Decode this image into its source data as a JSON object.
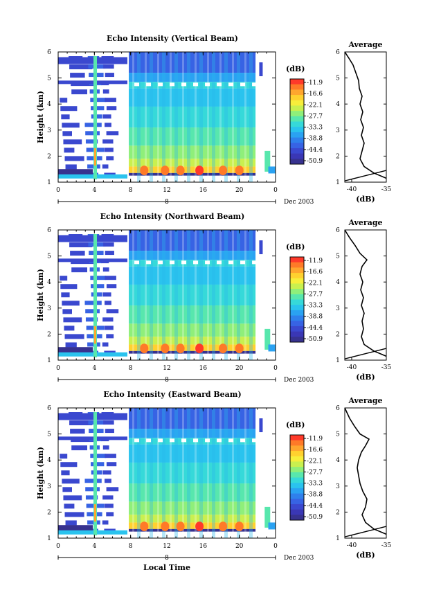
{
  "figure": {
    "date_label": "Dec 2003",
    "day_label": "8",
    "xlabel": "Local Time",
    "ylabel": "Height (km)"
  },
  "colorbar": {
    "unit": "(dB)",
    "ticks": [
      "-11.9",
      "-16.6",
      "-22.1",
      "-27.7",
      "-33.3",
      "-38.8",
      "-44.4",
      "-50.9"
    ],
    "colors": [
      "#ff3a2a",
      "#ff7a28",
      "#ffa62e",
      "#ffd12f",
      "#f7ee3b",
      "#c9f04f",
      "#8fef7a",
      "#58e7ad",
      "#36d9d9",
      "#2ac3ee",
      "#2aa2f2",
      "#2f80ec",
      "#3763e4",
      "#3a48cf",
      "#3a37b5",
      "#37328f"
    ]
  },
  "chart_data": [
    {
      "type": "heatmap",
      "title": "Echo Intensity (Vertical Beam)",
      "xlabel": "",
      "ylabel": "Height (km)",
      "xlim": [
        0,
        24
      ],
      "ylim": [
        1,
        6
      ],
      "xticks": [
        "0",
        "4",
        "8",
        "12",
        "16",
        "20",
        "0"
      ],
      "yticks": [
        "1",
        "2",
        "3",
        "4",
        "5",
        "6"
      ],
      "profile": {
        "type": "line",
        "title": "Average",
        "xlabel": "(dB)",
        "xlim": [
          -41,
          -35
        ],
        "xticks": [
          "-40",
          "-35"
        ],
        "points": [
          [
            -35.0,
            1.15
          ],
          [
            -36.8,
            1.35
          ],
          [
            -38.2,
            1.6
          ],
          [
            -38.8,
            1.9
          ],
          [
            -38.5,
            2.2
          ],
          [
            -38.2,
            2.5
          ],
          [
            -38.6,
            2.8
          ],
          [
            -38.3,
            3.1
          ],
          [
            -38.7,
            3.4
          ],
          [
            -38.4,
            3.7
          ],
          [
            -38.8,
            4.0
          ],
          [
            -38.5,
            4.3
          ],
          [
            -38.9,
            4.6
          ],
          [
            -39.0,
            4.9
          ],
          [
            -39.4,
            5.2
          ],
          [
            -39.8,
            5.5
          ],
          [
            -40.5,
            5.8
          ],
          [
            -41.0,
            6.0
          ]
        ],
        "lower_line": [
          [
            -41.0,
            1.05
          ],
          [
            -35.0,
            1.45
          ]
        ]
      }
    },
    {
      "type": "heatmap",
      "title": "Echo Intensity (Northward Beam)",
      "xlabel": "",
      "ylabel": "Height (km)",
      "xlim": [
        0,
        24
      ],
      "ylim": [
        1,
        6
      ],
      "xticks": [
        "0",
        "4",
        "8",
        "12",
        "16",
        "20",
        "0"
      ],
      "yticks": [
        "1",
        "2",
        "3",
        "4",
        "5",
        "6"
      ],
      "profile": {
        "type": "line",
        "title": "Average",
        "xlabel": "(dB)",
        "xlim": [
          -41,
          -35
        ],
        "xticks": [
          "-40",
          "-35"
        ],
        "points": [
          [
            -35.0,
            1.15
          ],
          [
            -36.8,
            1.35
          ],
          [
            -38.2,
            1.6
          ],
          [
            -38.6,
            1.9
          ],
          [
            -38.3,
            2.2
          ],
          [
            -38.5,
            2.5
          ],
          [
            -38.2,
            2.8
          ],
          [
            -38.6,
            3.1
          ],
          [
            -38.3,
            3.4
          ],
          [
            -38.7,
            3.7
          ],
          [
            -38.4,
            4.0
          ],
          [
            -38.8,
            4.3
          ],
          [
            -38.5,
            4.6
          ],
          [
            -37.8,
            4.85
          ],
          [
            -38.8,
            5.1
          ],
          [
            -39.5,
            5.4
          ],
          [
            -40.3,
            5.7
          ],
          [
            -41.0,
            6.0
          ]
        ],
        "lower_line": [
          [
            -41.0,
            1.05
          ],
          [
            -35.0,
            1.45
          ]
        ]
      }
    },
    {
      "type": "heatmap",
      "title": "Echo Intensity (Eastward Beam)",
      "xlabel": "Local Time",
      "ylabel": "Height (km)",
      "xlim": [
        0,
        24
      ],
      "ylim": [
        1,
        6
      ],
      "xticks": [
        "0",
        "4",
        "8",
        "12",
        "16",
        "20",
        "0"
      ],
      "yticks": [
        "1",
        "2",
        "3",
        "4",
        "5",
        "6"
      ],
      "profile": {
        "type": "line",
        "title": "Average",
        "xlabel": "(dB)",
        "xlim": [
          -41,
          -35
        ],
        "xticks": [
          "-40",
          "-35"
        ],
        "points": [
          [
            -35.0,
            1.15
          ],
          [
            -36.8,
            1.35
          ],
          [
            -38.0,
            1.6
          ],
          [
            -38.5,
            1.9
          ],
          [
            -38.0,
            2.2
          ],
          [
            -37.8,
            2.5
          ],
          [
            -38.4,
            2.8
          ],
          [
            -38.8,
            3.1
          ],
          [
            -39.0,
            3.4
          ],
          [
            -39.2,
            3.7
          ],
          [
            -39.0,
            4.0
          ],
          [
            -38.6,
            4.3
          ],
          [
            -38.0,
            4.55
          ],
          [
            -37.5,
            4.8
          ],
          [
            -38.8,
            5.0
          ],
          [
            -39.6,
            5.3
          ],
          [
            -40.3,
            5.6
          ],
          [
            -41.0,
            6.0
          ]
        ],
        "lower_line": [
          [
            -41.0,
            1.05
          ],
          [
            -35.0,
            1.45
          ]
        ]
      }
    }
  ]
}
